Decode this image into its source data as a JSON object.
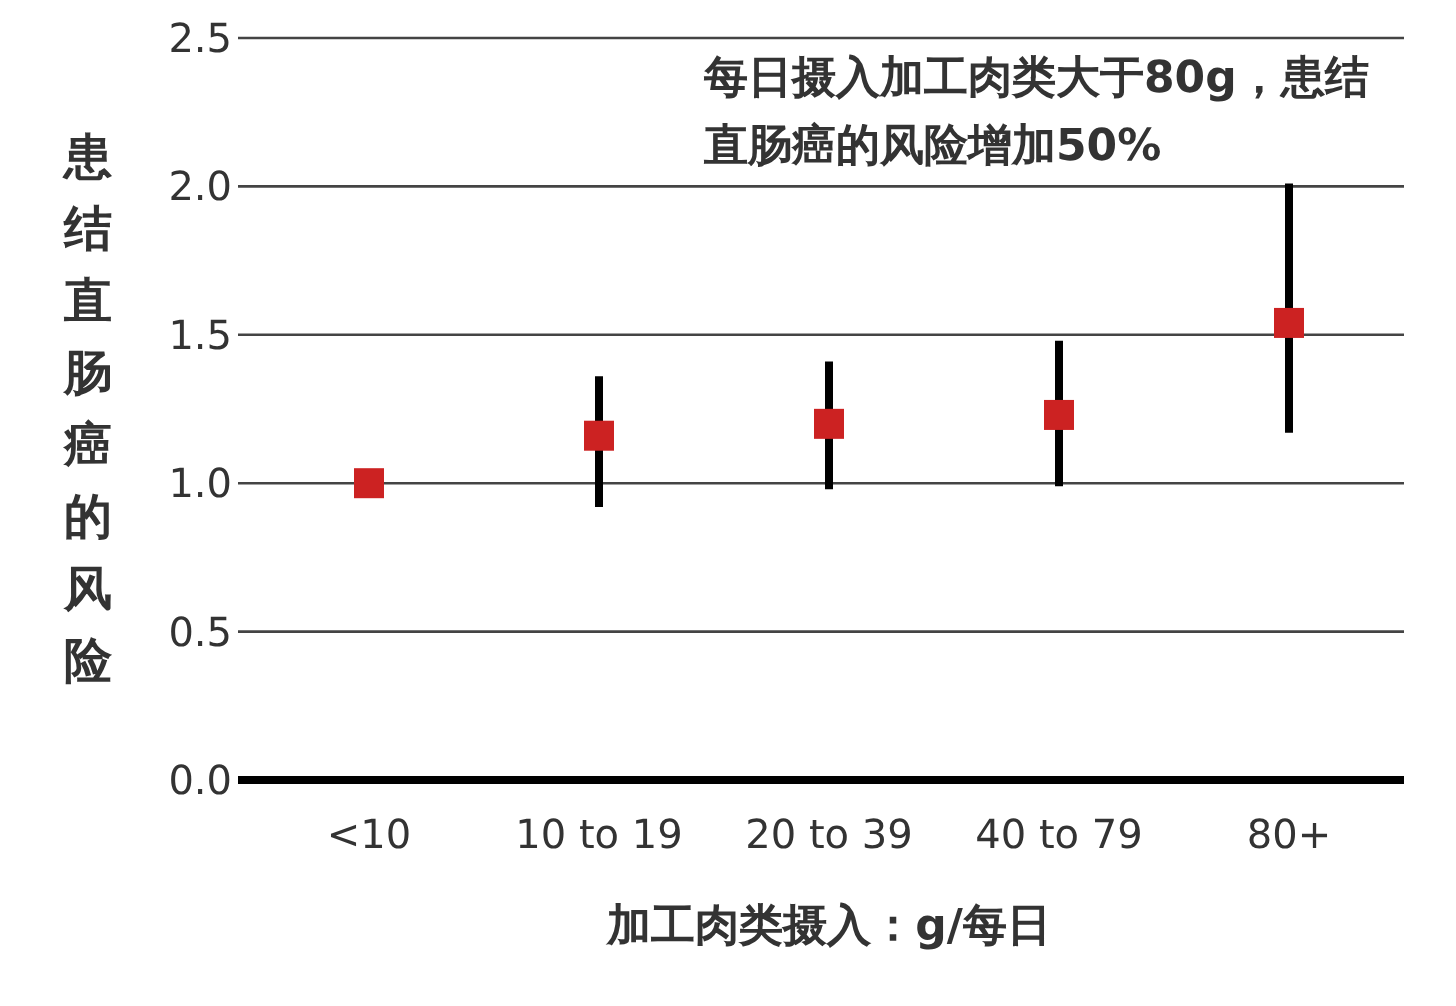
{
  "chart_data": {
    "type": "scatter",
    "categories": [
      "<10",
      "10 to 19",
      "20 to 39",
      "40 to 79",
      "80+"
    ],
    "values": [
      1.0,
      1.16,
      1.2,
      1.23,
      1.54
    ],
    "errors": [
      null,
      [
        0.92,
        1.36
      ],
      [
        0.98,
        1.41
      ],
      [
        0.99,
        1.48
      ],
      [
        1.17,
        2.01
      ]
    ],
    "color": "#cc2222",
    "marker": "square",
    "ylim": [
      0,
      2.5
    ],
    "yticks": [
      {
        "value": 0,
        "label": "0.0"
      },
      0.5,
      {
        "value": 1,
        "label": "1.0"
      },
      1.5,
      {
        "value": 2,
        "label": "2.0"
      },
      2.5
    ],
    "grid": "y",
    "xlabel": "加工肉类摄入：g/每日",
    "ylabel": "患结直肠癌的风险",
    "annotations": [
      "每日摄入加工肉类大于**80g**，患结直肠癌的风险增加**50%**"
    ]
  }
}
